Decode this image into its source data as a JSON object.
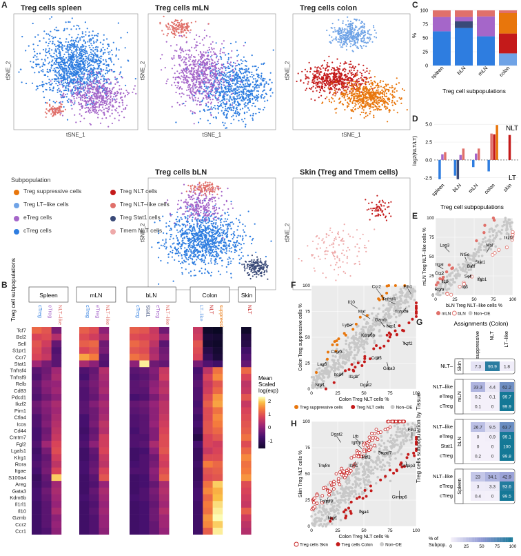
{
  "panels": {
    "A": "A",
    "B": "B",
    "C": "C",
    "D": "D",
    "E": "E",
    "F": "F",
    "G": "G",
    "H": "H"
  },
  "tsne": [
    {
      "id": "spleen",
      "title": "Treg cells spleen"
    },
    {
      "id": "mln",
      "title": "Treg cells mLN"
    },
    {
      "id": "colon",
      "title": "Treg cells colon"
    },
    {
      "id": "bln",
      "title": "Treg cells bLN"
    },
    {
      "id": "skin",
      "title": "Skin (Treg and Tmem cells)"
    }
  ],
  "tsne_axes": {
    "x": "tSNE_1",
    "y": "tSNE_2"
  },
  "subpop_legend": {
    "title": "Subpopulation",
    "items": [
      {
        "label": "Treg suppressive cells",
        "color": "#e8760c"
      },
      {
        "label": "Treg NLT cells",
        "color": "#c41a1a"
      },
      {
        "label": "Treg LT–like cells",
        "color": "#6fa3e6"
      },
      {
        "label": "Treg NLT–like cells",
        "color": "#e0706a"
      },
      {
        "label": "eTreg cells",
        "color": "#a566c9"
      },
      {
        "label": "Treg Stat1 cells",
        "color": "#3a4a78"
      },
      {
        "label": "cTreg cells",
        "color": "#2e7de0"
      },
      {
        "label": "Tmem NLT cells",
        "color": "#eea9a9"
      }
    ]
  },
  "chart_data": [
    {
      "type": "bar",
      "panel": "C",
      "title": "",
      "xlabel": "Treg cell subpopulations",
      "ylabel": "%",
      "categories": [
        "spleen",
        "bLN",
        "mLN",
        "colon"
      ],
      "ylim": [
        0,
        100
      ],
      "yticks": [
        "0",
        "25",
        "50",
        "75",
        "100"
      ],
      "series": [
        {
          "name": "cTreg",
          "color": "#2e7de0",
          "values": [
            62,
            68,
            53,
            0
          ]
        },
        {
          "name": "LT-like",
          "color": "#6fa3e6",
          "values": [
            0,
            0,
            0,
            22
          ]
        },
        {
          "name": "Stat1",
          "color": "#3a4a78",
          "values": [
            0,
            12,
            0,
            0
          ]
        },
        {
          "name": "eTreg",
          "color": "#a566c9",
          "values": [
            26,
            8,
            36,
            0
          ]
        },
        {
          "name": "NLT",
          "color": "#c41a1a",
          "values": [
            0,
            0,
            0,
            36
          ]
        },
        {
          "name": "suppressive",
          "color": "#e8760c",
          "values": [
            0,
            0,
            0,
            37
          ]
        },
        {
          "name": "NLT-like",
          "color": "#e0706a",
          "values": [
            12,
            12,
            11,
            5
          ]
        }
      ]
    },
    {
      "type": "bar",
      "panel": "D",
      "xlabel": "Treg cell subpopulations",
      "ylabel": "log2(NLT/LT)",
      "categories": [
        "spleen",
        "bLN",
        "mLN",
        "colon",
        "skin"
      ],
      "ylim": [
        -3.2,
        5.5
      ],
      "yticks": [
        "5.0",
        "2.5",
        "0.0",
        "-2.5"
      ],
      "labels": {
        "top": "NLT",
        "bottom": "LT"
      },
      "series": [
        {
          "name": "cTreg",
          "color": "#2e7de0",
          "values": [
            -2.7,
            -2.2,
            -1.0,
            -1.6,
            0
          ]
        },
        {
          "name": "Stat1",
          "color": "#3a4a78",
          "values": [
            0,
            -2.7,
            0,
            0,
            0
          ]
        },
        {
          "name": "eTreg",
          "color": "#a566c9",
          "values": [
            0.8,
            0.7,
            0.9,
            0,
            0
          ]
        },
        {
          "name": "NLT-like",
          "color": "#e0706a",
          "values": [
            1.1,
            1.6,
            1.6,
            3.7,
            0
          ]
        },
        {
          "name": "NLT",
          "color": "#c41a1a",
          "values": [
            0,
            0,
            0,
            3.6,
            3.5
          ]
        },
        {
          "name": "suppressive",
          "color": "#e8760c",
          "values": [
            0,
            0,
            0,
            4.9,
            0
          ]
        }
      ]
    },
    {
      "type": "heatmap",
      "panel": "B",
      "ylabel": "Treg cell subpopulations",
      "groups": [
        {
          "name": "Spleen",
          "cols": [
            "cTreg",
            "eTreg",
            "NLT–like"
          ]
        },
        {
          "name": "mLN",
          "cols": [
            "cTreg",
            "eTreg",
            "NLT–like"
          ]
        },
        {
          "name": "bLN",
          "cols": [
            "cTreg",
            "Stat1",
            "eTreg",
            "NLT–like"
          ]
        },
        {
          "name": "Colon",
          "cols": [
            "LT–like",
            "NLT",
            "suppressive"
          ]
        },
        {
          "name": "Skin",
          "cols": [
            "NLT"
          ]
        }
      ],
      "col_colors": [
        "#2e7de0",
        "#a566c9",
        "#e0706a",
        "#2e7de0",
        "#a566c9",
        "#e0706a",
        "#2e7de0",
        "#3a4a78",
        "#a566c9",
        "#e0706a",
        "#6fa3e6",
        "#c41a1a",
        "#e8760c",
        "#c41a1a"
      ],
      "genes": [
        "Tcf7",
        "Bcl2",
        "Sell",
        "S1pr1",
        "Ccr7",
        "Stat1",
        "Tnfrsf4",
        "Tnfrsf9",
        "Relb",
        "Cd83",
        "Pdcd1",
        "Ikzf2",
        "Pim1",
        "Ctla4",
        "Icos",
        "Cd44",
        "Cmtm7",
        "Fgl2",
        "Lgals1",
        "Klrg1",
        "Rora",
        "Itgae",
        "S100a4",
        "Areg",
        "Gata3",
        "Kdm6b",
        "Il1rl1",
        "Il10",
        "Gzmb",
        "Ccr2",
        "Ccr1"
      ],
      "legend": {
        "title": "Mean Scaled log(exp)",
        "ticks": [
          "2",
          "1",
          "0",
          "-1"
        ]
      },
      "values": [
        [
          1.2,
          1.0,
          -0.2,
          1.1,
          0.9,
          0.0,
          1.1,
          1.0,
          0.6,
          -0.3,
          0.6,
          -1.6,
          -1.7,
          -1.6
        ],
        [
          0.8,
          0.9,
          0.4,
          0.9,
          0.7,
          0.3,
          0.9,
          0.8,
          0.7,
          0.2,
          0.7,
          -1.4,
          -1.5,
          -1.3
        ],
        [
          1.0,
          0.7,
          -0.4,
          1.1,
          1.2,
          -0.3,
          1.2,
          1.0,
          0.5,
          -0.5,
          1.0,
          -1.5,
          -1.6,
          -1.2
        ],
        [
          0.9,
          0.5,
          -0.6,
          0.8,
          1.0,
          -0.2,
          1.0,
          0.9,
          0.3,
          -0.3,
          0.9,
          -1.2,
          -1.5,
          -0.8
        ],
        [
          0.8,
          0.6,
          -0.5,
          1.7,
          1.4,
          -0.5,
          1.3,
          1.1,
          0.4,
          -0.2,
          0.8,
          -1.0,
          -1.4,
          -0.6
        ],
        [
          0.2,
          -0.2,
          -0.5,
          0.3,
          0.0,
          -0.6,
          0.0,
          2.2,
          -0.3,
          -0.4,
          -0.2,
          -0.6,
          -0.8,
          -0.4
        ],
        [
          -0.5,
          -0.3,
          0.2,
          -0.6,
          -0.4,
          0.4,
          -0.5,
          -0.4,
          -0.1,
          0.6,
          -0.7,
          0.5,
          1.3,
          1.2
        ],
        [
          -0.6,
          -0.2,
          0.3,
          -0.7,
          -0.3,
          0.3,
          -0.6,
          -0.5,
          -0.2,
          0.7,
          -0.6,
          0.8,
          1.5,
          0.8
        ],
        [
          -0.4,
          0.0,
          0.1,
          -0.5,
          -0.2,
          0.2,
          -0.5,
          -0.4,
          0.0,
          0.4,
          -0.5,
          0.6,
          1.0,
          0.5
        ],
        [
          -0.5,
          -0.1,
          0.2,
          -0.6,
          -0.3,
          0.3,
          -0.5,
          -0.5,
          0.1,
          0.5,
          -0.6,
          0.7,
          1.2,
          0.6
        ],
        [
          -0.6,
          -0.3,
          0.0,
          -0.6,
          -0.4,
          0.1,
          -0.7,
          -0.6,
          -0.2,
          0.3,
          -0.6,
          0.9,
          1.6,
          1.0
        ],
        [
          -0.3,
          0.0,
          0.3,
          -0.5,
          -0.1,
          0.3,
          -0.4,
          -0.3,
          0.1,
          0.5,
          -0.7,
          1.1,
          1.7,
          0.6
        ],
        [
          -0.4,
          -0.1,
          0.2,
          -0.5,
          -0.3,
          0.2,
          -0.5,
          -0.4,
          0.0,
          0.5,
          -0.6,
          0.9,
          1.3,
          0.8
        ],
        [
          -0.6,
          -0.2,
          0.3,
          -0.7,
          -0.3,
          0.3,
          -0.6,
          -0.5,
          0.0,
          0.6,
          -0.8,
          0.9,
          1.5,
          0.9
        ],
        [
          -0.6,
          -0.1,
          0.4,
          -0.7,
          -0.2,
          0.5,
          -0.6,
          -0.5,
          0.1,
          0.7,
          -0.7,
          1.0,
          1.4,
          1.0
        ],
        [
          -0.7,
          -0.3,
          0.5,
          -0.8,
          -0.4,
          0.4,
          -0.7,
          -0.5,
          -0.1,
          0.8,
          -0.9,
          1.0,
          1.2,
          1.1
        ],
        [
          -0.7,
          -0.2,
          0.6,
          -0.7,
          -0.3,
          0.7,
          -0.6,
          -0.6,
          -0.1,
          0.9,
          -1.2,
          0.8,
          1.0,
          1.3
        ],
        [
          -0.6,
          0.2,
          0.8,
          -0.6,
          0.0,
          0.7,
          -0.6,
          -0.5,
          0.3,
          0.9,
          -0.7,
          0.8,
          0.7,
          0.9
        ],
        [
          -0.8,
          -0.2,
          0.9,
          -0.8,
          -0.4,
          0.8,
          -0.8,
          -0.7,
          0.0,
          1.0,
          -0.9,
          0.6,
          0.8,
          1.2
        ],
        [
          -0.7,
          -0.4,
          0.7,
          -0.8,
          -0.5,
          0.6,
          -0.8,
          -0.6,
          -0.3,
          0.8,
          -0.9,
          0.9,
          0.9,
          1.5
        ],
        [
          -0.6,
          -0.3,
          0.5,
          -0.7,
          -0.4,
          0.5,
          -0.7,
          -0.6,
          -0.2,
          0.7,
          -0.8,
          1.4,
          1.2,
          1.3
        ],
        [
          -0.7,
          -0.2,
          0.8,
          -0.7,
          -0.3,
          0.8,
          -0.6,
          -0.6,
          0.0,
          0.9,
          -0.9,
          1.0,
          1.1,
          1.4
        ],
        [
          -0.9,
          -0.4,
          2.0,
          -0.8,
          -0.5,
          1.0,
          -0.8,
          -0.7,
          -0.1,
          1.1,
          -0.9,
          0.9,
          1.0,
          1.6
        ],
        [
          -0.8,
          -0.5,
          0.2,
          -0.8,
          -0.6,
          0.1,
          -0.8,
          -0.7,
          -0.4,
          0.3,
          -0.8,
          1.3,
          2.0,
          0.9
        ],
        [
          -0.7,
          -0.3,
          0.3,
          -0.8,
          -0.4,
          0.3,
          -0.8,
          -0.6,
          -0.2,
          0.4,
          -0.7,
          1.5,
          1.8,
          0.8
        ],
        [
          -0.7,
          -0.4,
          0.2,
          -0.7,
          -0.5,
          0.2,
          -0.7,
          -0.6,
          -0.3,
          0.3,
          -0.7,
          1.2,
          1.9,
          0.7
        ],
        [
          -0.8,
          -0.5,
          0.1,
          -0.8,
          -0.6,
          0.1,
          -0.8,
          -0.7,
          -0.4,
          0.2,
          -0.8,
          1.4,
          2.1,
          0.6
        ],
        [
          -0.8,
          -0.5,
          0.3,
          -0.8,
          -0.5,
          0.2,
          -0.8,
          -0.7,
          -0.3,
          0.4,
          -0.8,
          1.3,
          2.2,
          1.1
        ],
        [
          -0.8,
          -0.5,
          0.0,
          -0.8,
          -0.6,
          0.1,
          -0.8,
          -0.7,
          -0.3,
          0.2,
          -0.8,
          1.6,
          2.3,
          0.7
        ],
        [
          -0.8,
          -0.5,
          0.1,
          -0.8,
          -0.6,
          0.1,
          -0.8,
          -0.7,
          -0.4,
          0.2,
          -0.8,
          1.5,
          2.0,
          0.5
        ],
        [
          -0.8,
          -0.6,
          0.0,
          -0.8,
          -0.6,
          0.0,
          -0.8,
          -0.7,
          -0.4,
          0.1,
          -0.8,
          1.1,
          2.2,
          0.4
        ]
      ]
    },
    {
      "type": "scatter",
      "panel": "E",
      "xlabel": "bLN Treg NLT–like cells %",
      "ylabel": "mLN Treg NLT–like cells %",
      "xticks": [
        "0",
        "25",
        "50",
        "75",
        "100"
      ],
      "yticks": [
        "0",
        "25",
        "50",
        "75",
        "100"
      ],
      "legend": [
        "mLN",
        "bLN",
        "Non–DE"
      ],
      "labels": [
        "Ikzf2",
        "Mal",
        "Lag3",
        "Nt5e",
        "Stat1",
        "Batf",
        "Itgal",
        "Ccr2",
        "Sell",
        "Itgb1",
        "Il10",
        "Id3",
        "Rora"
      ]
    },
    {
      "type": "scatter",
      "panel": "F",
      "xlabel": "Colon Treg NLT cells %",
      "ylabel": "Colon Treg suppressive cells %",
      "xticks": [
        "0",
        "25",
        "50",
        "75",
        "100"
      ],
      "yticks": [
        "0",
        "25",
        "50",
        "75",
        "100"
      ],
      "legend": [
        "Treg suppressive cells",
        "Treg NLT cells",
        "Non–DE"
      ],
      "labels": [
        "Ccr2",
        "Fth1",
        "Il10",
        "Tnfrsf4",
        "Maf",
        "Tnfrsf9",
        "Ly6a",
        "Gzmb",
        "Nrp1",
        "Kdm6b",
        "Ikzf2",
        "Cxcr3",
        "Cd83",
        "Lag3",
        "Gata3",
        "Il1rl1",
        "Itga4",
        "Dgat2",
        "Nrp1"
      ]
    },
    {
      "type": "scatter",
      "panel": "H",
      "xlabel": "Colon Treg NLT cells %",
      "ylabel": "Skin Treg NLT cells %",
      "xticks": [
        "0",
        "25",
        "50",
        "75",
        "100"
      ],
      "yticks": [
        "0",
        "25",
        "50",
        "75",
        "100"
      ],
      "legend": [
        "Treg cells Skin",
        "Treg cells Colon",
        "Non–DE"
      ],
      "labels": [
        "Dgat2",
        "Ltb",
        "Igfbp7",
        "Smad7",
        "Ikzf1",
        "Il1rl1",
        "Tnfaip3",
        "Gimap6",
        "Tnfrsf8",
        "Nrp1",
        "Itga4",
        "Fth1",
        "Tmem"
      ]
    },
    {
      "type": "table",
      "panel": "G",
      "title": "Assignments (Colon)",
      "ylabel": "Treg cells subpopulation by Tissue",
      "columns": [
        "suppressive",
        "NLT",
        "LT–like"
      ],
      "blocks": [
        {
          "tissue": "Skin",
          "rows": [
            {
              "name": "NLT–",
              "vals": [
                "7.3",
                "90.9",
                "1.8"
              ]
            }
          ]
        },
        {
          "tissue": "mLN",
          "rows": [
            {
              "name": "NLT–like",
              "vals": [
                "33.3",
                "4.4",
                "62.2"
              ]
            },
            {
              "name": "eTreg",
              "vals": [
                "0.2",
                "0.1",
                "99.7"
              ]
            },
            {
              "name": "cTreg",
              "vals": [
                "0.1",
                "0",
                "99.9"
              ]
            }
          ]
        },
        {
          "tissue": "bLN",
          "rows": [
            {
              "name": "NLT–like",
              "vals": [
                "26.7",
                "9.5",
                "63.7"
              ]
            },
            {
              "name": "eTreg",
              "vals": [
                "0",
                "0.9",
                "99.1"
              ]
            },
            {
              "name": "Stat1",
              "vals": [
                "0",
                "0",
                "100"
              ]
            },
            {
              "name": "cTreg",
              "vals": [
                "0.2",
                "0",
                "99.8"
              ]
            }
          ]
        },
        {
          "tissue": "Spleen",
          "rows": [
            {
              "name": "NLT–like",
              "vals": [
                "23",
                "34.1",
                "42.9"
              ]
            },
            {
              "name": "eTreg",
              "vals": [
                "3",
                "3.3",
                "93.6"
              ]
            },
            {
              "name": "cTreg",
              "vals": [
                "0.4",
                "0",
                "99.5"
              ]
            }
          ]
        }
      ],
      "legend": {
        "title": "% of Subpop.",
        "ticks": [
          "0",
          "25",
          "50",
          "75",
          "100"
        ]
      }
    }
  ]
}
